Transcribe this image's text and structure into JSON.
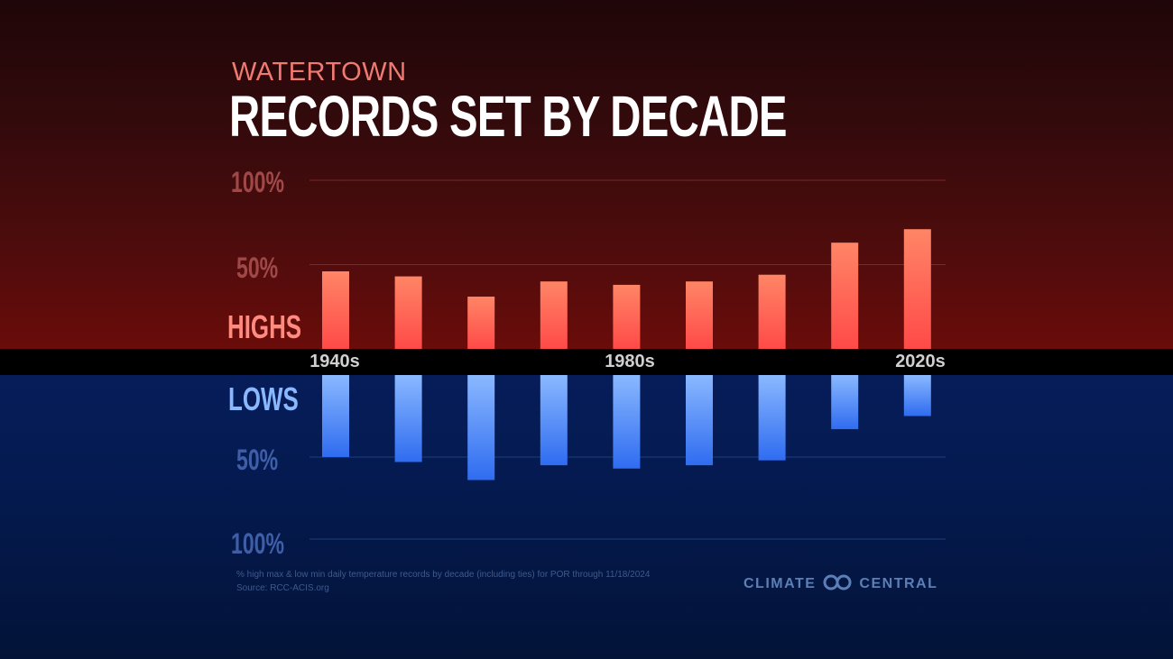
{
  "header": {
    "location": "WATERTOWN",
    "title": "RECORDS SET BY DECADE"
  },
  "labels": {
    "highs": "HIGHS",
    "lows": "LOWS"
  },
  "axes": {
    "highs_ticks": [
      "100%",
      "50%"
    ],
    "lows_ticks": [
      "50%",
      "100%"
    ],
    "decade_ticks": [
      "1940s",
      "1980s",
      "2020s"
    ]
  },
  "footnote": {
    "line1": "% high max & low min daily temperature records by decade (including ties) for POR through 11/18/2024",
    "line2": "Source: RCC-ACIS.org"
  },
  "brand": {
    "left": "CLIMATE",
    "right": "CENTRAL",
    "icon": "climate-central-logo-icon"
  },
  "colors": {
    "highs_bar_top": "#ff8566",
    "highs_bar_bottom": "#ff4a48",
    "lows_bar_top": "#8ab8ff",
    "lows_bar_bottom": "#2f6cf0",
    "axis_band": "#000000"
  },
  "chart_data": {
    "type": "bar",
    "categories": [
      "1940s",
      "1950s",
      "1960s",
      "1970s",
      "1980s",
      "1990s",
      "2000s",
      "2010s",
      "2020s"
    ],
    "visible_category_labels": [
      "1940s",
      "1980s",
      "2020s"
    ],
    "series": [
      {
        "name": "HIGHS",
        "values": [
          46,
          43,
          31,
          40,
          38,
          40,
          44,
          63,
          71
        ]
      },
      {
        "name": "LOWS",
        "values": [
          50,
          53,
          64,
          55,
          57,
          55,
          52,
          33,
          25
        ]
      }
    ],
    "ylim": [
      0,
      100
    ],
    "y_unit": "%",
    "grid": true,
    "layout": "diverging: highs above axis, lows below axis"
  }
}
